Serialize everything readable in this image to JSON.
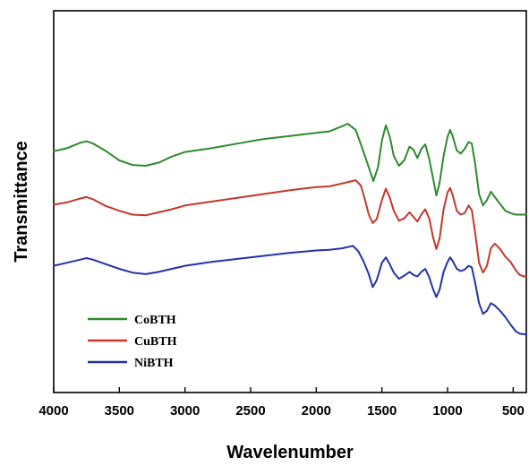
{
  "chart_data": {
    "type": "line",
    "title": "",
    "xlabel": "Wavelenumber",
    "ylabel": "Transmittance",
    "xlim": [
      4000,
      400
    ],
    "x_reversed": true,
    "x_ticks": [
      4000,
      3500,
      3000,
      2500,
      2000,
      1500,
      1000,
      500
    ],
    "y_ticks_visible": false,
    "ylim": [
      0,
      100
    ],
    "grid": false,
    "legend_position": "bottom-left",
    "series": [
      {
        "name": "CoBTH",
        "color": "#2e8b2e",
        "points": [
          [
            4000,
            63.2
          ],
          [
            3900,
            64.0
          ],
          [
            3800,
            65.4
          ],
          [
            3750,
            65.8
          ],
          [
            3700,
            65.2
          ],
          [
            3600,
            63.2
          ],
          [
            3500,
            60.8
          ],
          [
            3400,
            59.6
          ],
          [
            3300,
            59.4
          ],
          [
            3200,
            60.2
          ],
          [
            3100,
            61.8
          ],
          [
            3000,
            63.0
          ],
          [
            2800,
            64.0
          ],
          [
            2600,
            65.2
          ],
          [
            2400,
            66.4
          ],
          [
            2200,
            67.2
          ],
          [
            2000,
            68.0
          ],
          [
            1900,
            68.4
          ],
          [
            1800,
            69.8
          ],
          [
            1760,
            70.4
          ],
          [
            1700,
            68.8
          ],
          [
            1650,
            64.0
          ],
          [
            1600,
            59.0
          ],
          [
            1565,
            55.4
          ],
          [
            1530,
            59.0
          ],
          [
            1500,
            66.0
          ],
          [
            1470,
            70.0
          ],
          [
            1440,
            67.0
          ],
          [
            1410,
            62.0
          ],
          [
            1370,
            59.4
          ],
          [
            1330,
            60.8
          ],
          [
            1290,
            64.4
          ],
          [
            1260,
            63.6
          ],
          [
            1230,
            61.4
          ],
          [
            1200,
            63.8
          ],
          [
            1170,
            65.0
          ],
          [
            1140,
            61.2
          ],
          [
            1110,
            56.0
          ],
          [
            1085,
            51.6
          ],
          [
            1060,
            55.0
          ],
          [
            1030,
            62.0
          ],
          [
            1000,
            67.0
          ],
          [
            980,
            68.8
          ],
          [
            960,
            67.0
          ],
          [
            930,
            63.4
          ],
          [
            900,
            62.6
          ],
          [
            870,
            63.8
          ],
          [
            840,
            65.6
          ],
          [
            815,
            65.2
          ],
          [
            790,
            60.0
          ],
          [
            760,
            52.0
          ],
          [
            730,
            49.0
          ],
          [
            700,
            50.4
          ],
          [
            670,
            52.6
          ],
          [
            640,
            51.2
          ],
          [
            600,
            49.4
          ],
          [
            560,
            47.6
          ],
          [
            520,
            47.0
          ],
          [
            480,
            46.6
          ],
          [
            450,
            46.6
          ],
          [
            400,
            46.6
          ]
        ]
      },
      {
        "name": "CuBTH",
        "color": "#c0392b",
        "points": [
          [
            4000,
            49.2
          ],
          [
            3900,
            49.8
          ],
          [
            3800,
            50.8
          ],
          [
            3750,
            51.2
          ],
          [
            3700,
            50.6
          ],
          [
            3600,
            48.8
          ],
          [
            3500,
            47.6
          ],
          [
            3400,
            46.6
          ],
          [
            3300,
            46.4
          ],
          [
            3200,
            47.2
          ],
          [
            3100,
            48.0
          ],
          [
            3000,
            49.0
          ],
          [
            2800,
            50.0
          ],
          [
            2600,
            51.0
          ],
          [
            2400,
            52.0
          ],
          [
            2200,
            53.0
          ],
          [
            2000,
            53.8
          ],
          [
            1900,
            54.0
          ],
          [
            1800,
            54.8
          ],
          [
            1700,
            55.6
          ],
          [
            1660,
            54.2
          ],
          [
            1630,
            50.6
          ],
          [
            1600,
            46.6
          ],
          [
            1570,
            44.4
          ],
          [
            1540,
            45.4
          ],
          [
            1500,
            50.4
          ],
          [
            1470,
            53.4
          ],
          [
            1440,
            51.0
          ],
          [
            1410,
            47.6
          ],
          [
            1370,
            45.0
          ],
          [
            1330,
            45.6
          ],
          [
            1290,
            47.2
          ],
          [
            1260,
            46.0
          ],
          [
            1230,
            44.8
          ],
          [
            1200,
            46.6
          ],
          [
            1170,
            48.0
          ],
          [
            1140,
            45.6
          ],
          [
            1110,
            40.6
          ],
          [
            1085,
            37.6
          ],
          [
            1060,
            40.4
          ],
          [
            1030,
            48.0
          ],
          [
            1000,
            52.4
          ],
          [
            980,
            53.6
          ],
          [
            960,
            51.6
          ],
          [
            930,
            47.6
          ],
          [
            900,
            46.6
          ],
          [
            870,
            47.0
          ],
          [
            840,
            49.0
          ],
          [
            815,
            47.8
          ],
          [
            790,
            42.0
          ],
          [
            760,
            34.0
          ],
          [
            730,
            31.4
          ],
          [
            700,
            33.2
          ],
          [
            670,
            37.8
          ],
          [
            640,
            39.0
          ],
          [
            600,
            37.6
          ],
          [
            560,
            35.6
          ],
          [
            520,
            34.2
          ],
          [
            480,
            32.0
          ],
          [
            450,
            30.8
          ],
          [
            400,
            30.2
          ]
        ]
      },
      {
        "name": "NiBTH",
        "color": "#2432a8",
        "points": [
          [
            4000,
            33.2
          ],
          [
            3900,
            34.0
          ],
          [
            3800,
            34.8
          ],
          [
            3750,
            35.2
          ],
          [
            3700,
            34.8
          ],
          [
            3600,
            33.6
          ],
          [
            3500,
            32.4
          ],
          [
            3400,
            31.4
          ],
          [
            3300,
            31.0
          ],
          [
            3200,
            31.6
          ],
          [
            3100,
            32.4
          ],
          [
            3000,
            33.2
          ],
          [
            2800,
            34.2
          ],
          [
            2600,
            35.0
          ],
          [
            2400,
            35.8
          ],
          [
            2200,
            36.6
          ],
          [
            2000,
            37.2
          ],
          [
            1900,
            37.4
          ],
          [
            1800,
            37.8
          ],
          [
            1750,
            38.2
          ],
          [
            1720,
            38.4
          ],
          [
            1680,
            37.0
          ],
          [
            1640,
            34.4
          ],
          [
            1600,
            31.0
          ],
          [
            1570,
            27.6
          ],
          [
            1540,
            29.4
          ],
          [
            1500,
            34.0
          ],
          [
            1470,
            35.4
          ],
          [
            1440,
            33.6
          ],
          [
            1410,
            31.4
          ],
          [
            1370,
            29.8
          ],
          [
            1330,
            30.6
          ],
          [
            1290,
            31.6
          ],
          [
            1260,
            30.8
          ],
          [
            1230,
            30.4
          ],
          [
            1200,
            31.6
          ],
          [
            1170,
            32.4
          ],
          [
            1140,
            30.2
          ],
          [
            1110,
            27.0
          ],
          [
            1085,
            25.0
          ],
          [
            1060,
            27.0
          ],
          [
            1030,
            31.6
          ],
          [
            1000,
            34.2
          ],
          [
            980,
            35.4
          ],
          [
            960,
            34.4
          ],
          [
            930,
            32.4
          ],
          [
            900,
            31.8
          ],
          [
            870,
            32.2
          ],
          [
            840,
            33.2
          ],
          [
            815,
            32.8
          ],
          [
            790,
            28.8
          ],
          [
            760,
            23.4
          ],
          [
            730,
            20.6
          ],
          [
            700,
            21.4
          ],
          [
            670,
            23.4
          ],
          [
            640,
            22.8
          ],
          [
            600,
            21.4
          ],
          [
            560,
            19.8
          ],
          [
            520,
            17.8
          ],
          [
            480,
            16.0
          ],
          [
            450,
            15.4
          ],
          [
            400,
            15.2
          ]
        ]
      }
    ]
  }
}
